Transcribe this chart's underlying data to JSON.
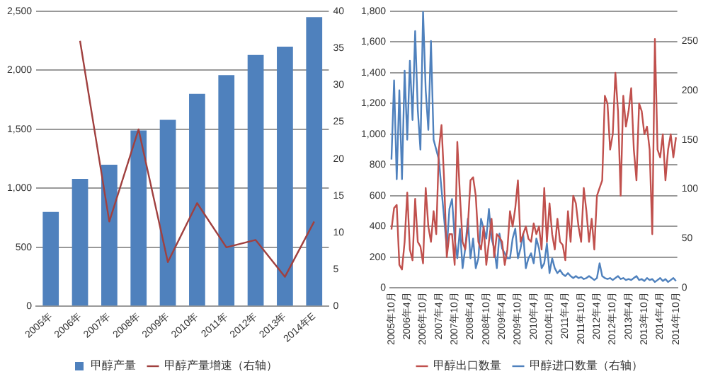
{
  "chart_data": [
    {
      "type": "bar",
      "categories": [
        "2005年",
        "2006年",
        "2007年",
        "2008年",
        "2009年",
        "2010年",
        "2011年",
        "2012年",
        "2013年",
        "2014年E"
      ],
      "series": [
        {
          "name": "甲醇产量",
          "color": "#4f81bd",
          "values": [
            800,
            1080,
            1200,
            1490,
            1580,
            1800,
            1960,
            2130,
            2200,
            2450
          ]
        },
        {
          "name": "甲醇产量增速（右轴）",
          "type": "line",
          "axis": "y2",
          "color": "#a0403f",
          "values": [
            null,
            36,
            11.5,
            24,
            6,
            14,
            8,
            9,
            4,
            11.5
          ]
        }
      ],
      "ylim": [
        0,
        2500
      ],
      "yticks": [
        0,
        500,
        {
          "value": 1000,
          "label": "1,000"
        },
        {
          "value": 1500,
          "label": "1,500"
        },
        {
          "value": 2000,
          "label": "2,000"
        },
        {
          "value": 2500,
          "label": "2,500"
        }
      ],
      "y2lim": [
        0,
        40
      ],
      "y2ticks": [
        0,
        5,
        10,
        15,
        20,
        25,
        30,
        35,
        40
      ],
      "grid": "y",
      "legend": "bottom",
      "marker": "none"
    },
    {
      "type": "line",
      "categories": [
        "2005年10月",
        null,
        null,
        null,
        null,
        null,
        "2006年4月",
        null,
        null,
        null,
        null,
        null,
        "2006年10月",
        null,
        null,
        null,
        null,
        null,
        "2007年4月",
        null,
        null,
        null,
        null,
        null,
        "2007年10月",
        null,
        null,
        null,
        null,
        null,
        "2008年4月",
        null,
        null,
        null,
        null,
        null,
        "2008年10月",
        null,
        null,
        null,
        null,
        null,
        "2009年4月",
        null,
        null,
        null,
        null,
        null,
        "2009年10月",
        null,
        null,
        null,
        null,
        null,
        "2010年4月",
        null,
        null,
        null,
        null,
        null,
        "2010年10月",
        null,
        null,
        null,
        null,
        null,
        "2011年4月",
        null,
        null,
        null,
        null,
        null,
        "2011年10月",
        null,
        null,
        null,
        null,
        null,
        "2012年4月",
        null,
        null,
        null,
        null,
        null,
        "2012年10月",
        null,
        null,
        null,
        null,
        null,
        "2013年4月",
        null,
        null,
        null,
        null,
        null,
        "2013年10月",
        null,
        null,
        null,
        null,
        null,
        "2014年4月",
        null,
        null,
        null,
        null,
        null,
        "2014年10月"
      ],
      "series": [
        {
          "name": "甲醇出口数量",
          "color": "#c0504d",
          "values": [
            380,
            520,
            540,
            150,
            120,
            300,
            620,
            250,
            180,
            580,
            300,
            270,
            160,
            650,
            400,
            300,
            500,
            350,
            900,
            1060,
            700,
            200,
            350,
            350,
            150,
            950,
            600,
            300,
            250,
            400,
            700,
            720,
            600,
            300,
            250,
            400,
            150,
            300,
            450,
            200,
            350,
            330,
            300,
            150,
            250,
            500,
            400,
            520,
            700,
            300,
            350,
            400,
            320,
            300,
            420,
            350,
            400,
            250,
            650,
            300,
            550,
            350,
            250,
            450,
            300,
            280,
            180,
            500,
            300,
            600,
            550,
            400,
            300,
            650,
            500,
            300,
            450,
            250,
            600,
            650,
            700,
            1250,
            1200,
            900,
            1000,
            1400,
            1150,
            600,
            1250,
            1050,
            1150,
            1300,
            900,
            700,
            1200,
            1150,
            1000,
            1050,
            900,
            350,
            1620,
            900,
            850,
            1000,
            700,
            900,
            1000,
            850,
            980
          ]
        },
        {
          "name": "甲醇进口数量（右轴）",
          "axis": "y2",
          "color": "#4f81bd",
          "values": [
            130,
            210,
            110,
            200,
            110,
            220,
            150,
            230,
            170,
            260,
            180,
            140,
            280,
            200,
            160,
            250,
            150,
            140,
            130,
            100,
            70,
            40,
            80,
            90,
            50,
            30,
            60,
            20,
            40,
            70,
            30,
            50,
            20,
            30,
            70,
            60,
            50,
            80,
            50,
            40,
            20,
            55,
            40,
            35,
            30,
            30,
            50,
            60,
            30,
            40,
            55,
            20,
            30,
            35,
            25,
            50,
            40,
            20,
            25,
            45,
            15,
            30,
            20,
            15,
            18,
            14,
            12,
            15,
            12,
            10,
            12,
            10,
            11,
            9,
            10,
            12,
            10,
            8,
            10,
            25,
            12,
            10,
            9,
            10,
            8,
            10,
            12,
            9,
            10,
            8,
            9,
            8,
            10,
            12,
            8,
            9,
            7,
            10,
            8,
            9,
            6,
            8,
            10,
            7,
            9,
            6,
            8,
            10,
            7
          ]
        }
      ],
      "ylim": [
        0,
        1800
      ],
      "yticks": [
        0,
        200,
        400,
        600,
        800,
        {
          "value": 1000,
          "label": "1,000"
        },
        {
          "value": 1200,
          "label": "1,200"
        },
        {
          "value": 1400,
          "label": "1,400"
        },
        {
          "value": 1600,
          "label": "1,600"
        },
        {
          "value": 1800,
          "label": "1,800"
        }
      ],
      "y2lim": [
        0,
        280
      ],
      "y2ticks": [
        0,
        50,
        100,
        150,
        200,
        250
      ],
      "grid": "y",
      "legend": "bottom",
      "marker": "none"
    }
  ]
}
